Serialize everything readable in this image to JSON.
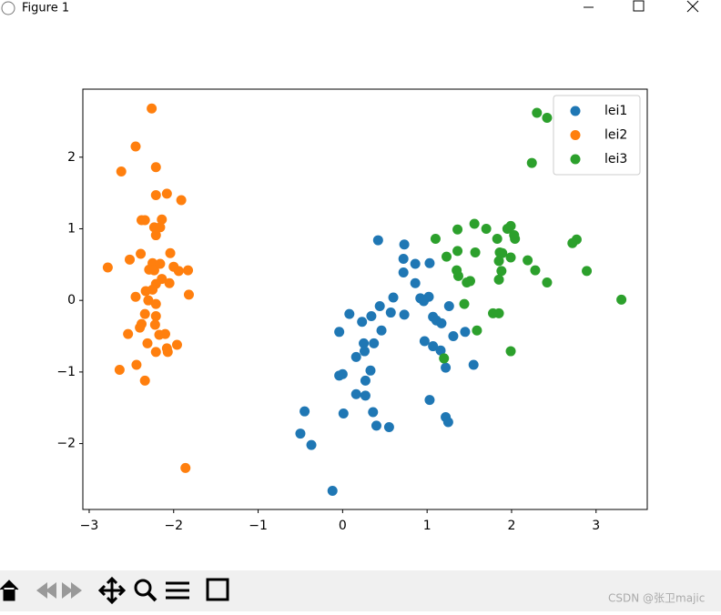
{
  "window": {
    "title": "Figure 1"
  },
  "watermark": "CSDN @张卫majic",
  "chart_data": {
    "type": "scatter",
    "xlim": [
      -3.075,
      3.606
    ],
    "ylim": [
      -2.92,
      2.95
    ],
    "xticks": [
      {
        "value": -3,
        "label": "−3"
      },
      {
        "value": -2,
        "label": "−2"
      },
      {
        "value": -1,
        "label": "−1"
      },
      0,
      1,
      2,
      3
    ],
    "yticks": [
      {
        "value": -2,
        "label": "−2"
      },
      {
        "value": -1,
        "label": "−1"
      },
      0,
      1,
      2
    ],
    "legend": "upper right",
    "series": [
      {
        "name": "lei1",
        "color": "#1f77b4",
        "x": [
          0.42,
          0.73,
          0.72,
          0.86,
          1.03,
          0.72,
          0.86,
          0.6,
          0.92,
          1.02,
          0.96,
          0.44,
          1.26,
          0.57,
          0.08,
          0.34,
          0.73,
          1.07,
          1.11,
          1.17,
          0.23,
          0.46,
          -0.04,
          1.31,
          1.45,
          0.25,
          0.37,
          0.97,
          1.07,
          1.16,
          0.26,
          0.16,
          1.22,
          0.33,
          1.55,
          0.0,
          -0.04,
          0.27,
          0.16,
          0.27,
          1.03,
          -0.45,
          0.01,
          0.36,
          1.22,
          1.25,
          0.4,
          0.55,
          -0.5,
          -0.37,
          -0.12
        ],
        "values": [
          0.84,
          0.78,
          0.58,
          0.51,
          0.52,
          0.39,
          0.24,
          0.04,
          0.03,
          0.05,
          -0.01,
          -0.08,
          -0.08,
          -0.17,
          -0.19,
          -0.22,
          -0.2,
          -0.23,
          -0.28,
          -0.32,
          -0.3,
          -0.42,
          -0.44,
          -0.5,
          -0.44,
          -0.6,
          -0.6,
          -0.57,
          -0.64,
          -0.7,
          -0.71,
          -0.79,
          -0.94,
          -0.98,
          -0.9,
          -1.03,
          -1.05,
          -1.12,
          -1.31,
          -1.33,
          -1.39,
          -1.55,
          -1.58,
          -1.56,
          -1.63,
          -1.7,
          -1.75,
          -1.77,
          -1.86,
          -2.02,
          -2.66
        ]
      },
      {
        "name": "lei2",
        "color": "#ff7f0e",
        "x": [
          -2.26,
          -2.45,
          -2.62,
          -2.21,
          -2.21,
          -2.08,
          -1.91,
          -2.38,
          -2.34,
          -2.14,
          -2.23,
          -2.16,
          -2.21,
          -2.39,
          -2.04,
          -2.52,
          -2.25,
          -2.16,
          -2.78,
          -2.29,
          -2.23,
          -2.0,
          -1.94,
          -1.83,
          -2.14,
          -2.05,
          -2.21,
          -2.25,
          -2.33,
          -1.82,
          -2.45,
          -2.3,
          -2.21,
          -2.34,
          -2.21,
          -2.38,
          -2.4,
          -2.22,
          -2.54,
          -2.17,
          -2.1,
          -2.31,
          -1.96,
          -2.08,
          -2.21,
          -2.07,
          -2.44,
          -2.64,
          -2.34,
          -1.86
        ],
        "values": [
          2.68,
          2.15,
          1.8,
          1.86,
          1.47,
          1.49,
          1.4,
          1.12,
          1.12,
          1.13,
          1.02,
          1.02,
          0.91,
          0.65,
          0.66,
          0.57,
          0.52,
          0.51,
          0.46,
          0.43,
          0.42,
          0.47,
          0.41,
          0.42,
          0.3,
          0.24,
          0.23,
          0.15,
          0.13,
          0.08,
          0.05,
          0.0,
          -0.05,
          -0.19,
          -0.22,
          -0.33,
          -0.38,
          -0.34,
          -0.47,
          -0.48,
          -0.47,
          -0.6,
          -0.62,
          -0.67,
          -0.72,
          -0.72,
          -0.9,
          -0.97,
          -1.12,
          -2.34
        ]
      },
      {
        "name": "lei3",
        "color": "#2ca02c",
        "x": [
          2.3,
          2.42,
          2.24,
          1.56,
          1.7,
          1.36,
          1.95,
          1.99,
          2.03,
          2.04,
          1.83,
          1.1,
          2.77,
          2.72,
          1.57,
          1.36,
          1.86,
          1.89,
          1.23,
          1.99,
          2.19,
          1.85,
          1.35,
          1.88,
          2.28,
          2.89,
          1.37,
          1.85,
          1.47,
          1.51,
          2.42,
          3.3,
          1.44,
          1.78,
          1.85,
          1.59,
          1.99,
          1.2
        ],
        "values": [
          2.62,
          2.55,
          1.92,
          1.07,
          1.0,
          0.99,
          1.0,
          1.04,
          0.91,
          0.86,
          0.86,
          0.86,
          0.85,
          0.8,
          0.67,
          0.69,
          0.67,
          0.66,
          0.61,
          0.6,
          0.56,
          0.55,
          0.42,
          0.41,
          0.42,
          0.41,
          0.34,
          0.29,
          0.25,
          0.27,
          0.25,
          0.01,
          -0.05,
          -0.18,
          -0.18,
          -0.42,
          -0.71,
          -0.81
        ]
      }
    ]
  }
}
